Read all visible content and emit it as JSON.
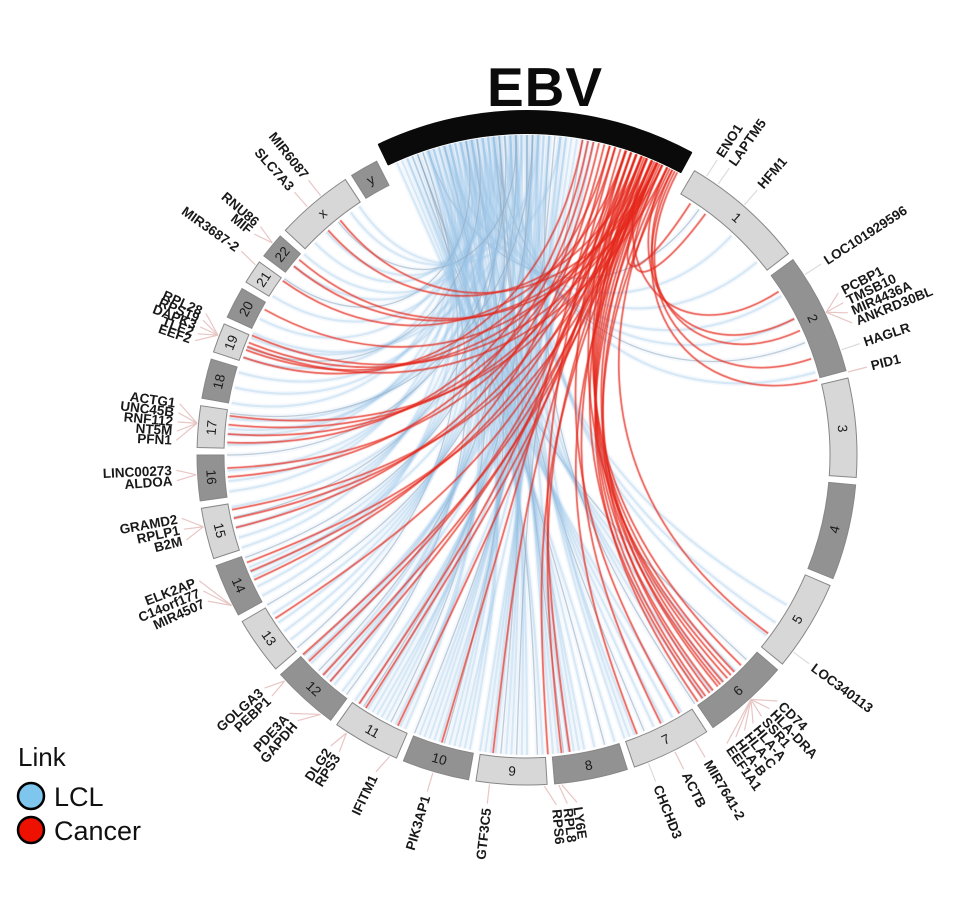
{
  "title": "EBV",
  "legend": {
    "title": "Link",
    "items": [
      {
        "label": "LCL",
        "color": "#7FC6EF"
      },
      {
        "label": "Cancer",
        "color": "#EE1100"
      }
    ]
  },
  "chart_data": {
    "type": "chord",
    "title": "EBV",
    "description": "Circos chord plot of EBV links to human chromosomes; blue chords = LCL links, red chords = Cancer links",
    "ebv_arc": {
      "label": "EBV",
      "start_deg": -25.5,
      "end_deg": 28.5,
      "color": "#0a0a0a"
    },
    "arc_colors": {
      "light": "#D7D7D7",
      "dark": "#929292",
      "border": "#878787"
    },
    "link_colors": {
      "LCL": "#9CC8E8",
      "Cancer": "#E5271C"
    },
    "tick_color_default": "#E8C6C4",
    "chromosomes": [
      {
        "name": "1",
        "start": 30.5,
        "end": 52.4,
        "shade": "light"
      },
      {
        "name": "2",
        "start": 53.7,
        "end": 75.2,
        "shade": "dark"
      },
      {
        "name": "3",
        "start": 76.5,
        "end": 93.9,
        "shade": "light"
      },
      {
        "name": "4",
        "start": 95.2,
        "end": 112.0,
        "shade": "dark"
      },
      {
        "name": "5",
        "start": 113.3,
        "end": 129.3,
        "shade": "light"
      },
      {
        "name": "6",
        "start": 130.6,
        "end": 145.7,
        "shade": "dark"
      },
      {
        "name": "7",
        "start": 147.0,
        "end": 161.0,
        "shade": "light"
      },
      {
        "name": "8",
        "start": 162.3,
        "end": 175.2,
        "shade": "dark"
      },
      {
        "name": "9",
        "start": 176.5,
        "end": 188.9,
        "shade": "light"
      },
      {
        "name": "10",
        "start": 190.2,
        "end": 202.0,
        "shade": "dark"
      },
      {
        "name": "11",
        "start": 203.3,
        "end": 215.2,
        "shade": "light"
      },
      {
        "name": "12",
        "start": 216.5,
        "end": 228.3,
        "shade": "dark"
      },
      {
        "name": "13",
        "start": 229.6,
        "end": 239.7,
        "shade": "light"
      },
      {
        "name": "14",
        "start": 241.0,
        "end": 250.4,
        "shade": "dark"
      },
      {
        "name": "15",
        "start": 251.7,
        "end": 260.7,
        "shade": "light"
      },
      {
        "name": "16",
        "start": 262.0,
        "end": 270.0,
        "shade": "dark"
      },
      {
        "name": "17",
        "start": 271.3,
        "end": 278.6,
        "shade": "light"
      },
      {
        "name": "18",
        "start": 279.9,
        "end": 286.9,
        "shade": "dark"
      },
      {
        "name": "19",
        "start": 288.2,
        "end": 293.4,
        "shade": "light"
      },
      {
        "name": "20",
        "start": 294.7,
        "end": 300.3,
        "shade": "dark"
      },
      {
        "name": "21",
        "start": 301.6,
        "end": 305.8,
        "shade": "light"
      },
      {
        "name": "22",
        "start": 307.1,
        "end": 311.6,
        "shade": "dark"
      },
      {
        "name": "x",
        "start": 312.9,
        "end": 326.6,
        "shade": "light"
      },
      {
        "name": "y",
        "start": 327.9,
        "end": 332.9,
        "shade": "dark"
      }
    ],
    "genes": [
      {
        "label": "ENO1",
        "chr": "1",
        "angle": 32.8,
        "anchor": 32.8,
        "tick": "#DCDCDC"
      },
      {
        "label": "LAPTM5",
        "chr": "1",
        "angle": 35.2,
        "anchor": 35.2,
        "tick": "#DCDCDC"
      },
      {
        "label": "HFM1",
        "chr": "1",
        "angle": 41.0,
        "anchor": 41.0,
        "tick": "#DCDCDC"
      },
      {
        "label": "LOC101929596",
        "chr": "2",
        "angle": 57.0,
        "anchor": 57.0,
        "tick": "#DCDCDC"
      },
      {
        "label": "PCBP1",
        "chr": "2",
        "angle": 62.5,
        "anchor": 64.5
      },
      {
        "label": "TMSB10",
        "chr": "2",
        "angle": 64.3,
        "anchor": 64.5
      },
      {
        "label": "MIR4436A",
        "chr": "2",
        "angle": 66.1,
        "anchor": 64.5
      },
      {
        "label": "ANKRD30BL",
        "chr": "2",
        "angle": 67.9,
        "anchor": 64.5
      },
      {
        "label": "HAGLR",
        "chr": "2",
        "angle": 71.5,
        "anchor": 71.5,
        "tick": "#DCDCDC"
      },
      {
        "label": "PID1",
        "chr": "2",
        "angle": 75.5,
        "anchor": 75.5
      },
      {
        "label": "LOC340113",
        "chr": "5",
        "angle": 126.5,
        "anchor": 126.5,
        "tick": "#DCDCDC"
      },
      {
        "label": "CD74",
        "chr": "6",
        "angle": 134.5,
        "anchor": 137.5
      },
      {
        "label": "HLA-DRA",
        "chr": "6",
        "angle": 136.3,
        "anchor": 137.5
      },
      {
        "label": "SSR1",
        "chr": "6",
        "angle": 138.1,
        "anchor": 137.5
      },
      {
        "label": "HLA-A",
        "chr": "6",
        "angle": 139.9,
        "anchor": 137.5
      },
      {
        "label": "HLA-C",
        "chr": "6",
        "angle": 141.7,
        "anchor": 137.5
      },
      {
        "label": "HLA-B",
        "chr": "6",
        "angle": 143.5,
        "anchor": 137.5
      },
      {
        "label": "EEF1A1",
        "chr": "6",
        "angle": 145.3,
        "anchor": 137.5
      },
      {
        "label": "MIR7641-2",
        "chr": "7",
        "angle": 149.5,
        "anchor": 149.5
      },
      {
        "label": "ACTB",
        "chr": "7",
        "angle": 153.5,
        "anchor": 153.5
      },
      {
        "label": "CHCHD3",
        "chr": "7",
        "angle": 158.5,
        "anchor": 158.5,
        "tick": "#DCDCDC"
      },
      {
        "label": "LY6E",
        "chr": "8",
        "angle": 171.8,
        "anchor": 174.0
      },
      {
        "label": "RPL8",
        "chr": "8",
        "angle": 173.4,
        "anchor": 174.5
      },
      {
        "label": "RPS6",
        "chr": "9",
        "angle": 175.2,
        "anchor": 177.0
      },
      {
        "label": "GTF3C5",
        "chr": "9",
        "angle": 186.5,
        "anchor": 186.5
      },
      {
        "label": "PIK3AP1",
        "chr": "10",
        "angle": 196.5,
        "anchor": 196.5
      },
      {
        "label": "IFITM1",
        "chr": "11",
        "angle": 205.5,
        "anchor": 204.5
      },
      {
        "label": "RPS3",
        "chr": "11",
        "angle": 212.3,
        "anchor": 213.0
      },
      {
        "label": "DLG2",
        "chr": "11",
        "angle": 214.0,
        "anchor": 213.0
      },
      {
        "label": "GAPDH",
        "chr": "12",
        "angle": 220.8,
        "anchor": 218.5
      },
      {
        "label": "PDE3A",
        "chr": "12",
        "angle": 222.6,
        "anchor": 218.5
      },
      {
        "label": "PEBP1",
        "chr": "12",
        "angle": 226.6,
        "anchor": 227.0
      },
      {
        "label": "GOLGA3",
        "chr": "12",
        "angle": 228.4,
        "anchor": 227.0
      },
      {
        "label": "MIR4507",
        "chr": "14",
        "angle": 245.4,
        "anchor": 243.0
      },
      {
        "label": "C14orf177",
        "chr": "14",
        "angle": 247.2,
        "anchor": 243.0
      },
      {
        "label": "ELK2AP",
        "chr": "14",
        "angle": 249.0,
        "anchor": 243.0
      },
      {
        "label": "B2M",
        "chr": "15",
        "angle": 256.0,
        "anchor": 257.5
      },
      {
        "label": "RPLP1",
        "chr": "15",
        "angle": 257.8,
        "anchor": 257.5
      },
      {
        "label": "GRAMD2",
        "chr": "15",
        "angle": 259.6,
        "anchor": 257.5
      },
      {
        "label": "ALDOA",
        "chr": "16",
        "angle": 265.8,
        "anchor": 266.6
      },
      {
        "label": "LINC00273",
        "chr": "16",
        "angle": 267.5,
        "anchor": 266.6
      },
      {
        "label": "PFN1",
        "chr": "17",
        "angle": 272.4,
        "anchor": 275.5
      },
      {
        "label": "NT5M",
        "chr": "17",
        "angle": 273.9,
        "anchor": 275.5
      },
      {
        "label": "RNF112",
        "chr": "17",
        "angle": 275.4,
        "anchor": 275.5
      },
      {
        "label": "UNC45B",
        "chr": "17",
        "angle": 276.9,
        "anchor": 275.5
      },
      {
        "label": "ACTG1",
        "chr": "17",
        "angle": 278.4,
        "anchor": 275.5
      },
      {
        "label": "EEF2",
        "chr": "19",
        "angle": 289.0,
        "anchor": 291.2
      },
      {
        "label": "TLE2",
        "chr": "19",
        "angle": 290.2,
        "anchor": 291.2
      },
      {
        "label": "DAPK3",
        "chr": "19",
        "angle": 291.4,
        "anchor": 291.2
      },
      {
        "label": "RPS19",
        "chr": "19",
        "angle": 292.6,
        "anchor": 291.2
      },
      {
        "label": "RPL28",
        "chr": "19",
        "angle": 293.8,
        "anchor": 291.2
      },
      {
        "label": "MIR3687-2",
        "chr": "21",
        "angle": 305.5,
        "anchor": 305.0
      },
      {
        "label": "MIF",
        "chr": "22",
        "angle": 309.0,
        "anchor": 309.8
      },
      {
        "label": "RNU86",
        "chr": "22",
        "angle": 310.6,
        "anchor": 309.8
      },
      {
        "label": "SLC7A3",
        "chr": "x",
        "angle": 318.5,
        "anchor": 318.5
      },
      {
        "label": "MIR6087",
        "chr": "x",
        "angle": 321.5,
        "anchor": 321.5
      }
    ],
    "links": {
      "Cancer": [
        [
          24,
          33
        ],
        [
          25,
          36.5
        ],
        [
          22,
          57
        ],
        [
          26,
          63
        ],
        [
          27,
          65.5
        ],
        [
          28,
          71.3
        ],
        [
          27.5,
          75.5
        ],
        [
          26.5,
          126.5
        ],
        [
          19,
          134.5
        ],
        [
          20,
          136.3
        ],
        [
          21,
          138.1
        ],
        [
          22,
          139.9
        ],
        [
          23,
          141.7
        ],
        [
          24,
          143.5
        ],
        [
          25,
          145.3
        ],
        [
          26,
          140.5
        ],
        [
          27,
          142.5
        ],
        [
          18,
          137.2
        ],
        [
          21.5,
          144.2
        ],
        [
          24.5,
          139.2
        ],
        [
          17,
          149.5
        ],
        [
          23,
          153.5
        ],
        [
          24,
          158.5
        ],
        [
          16,
          171.8
        ],
        [
          22,
          173.4
        ],
        [
          23.5,
          176
        ],
        [
          20,
          186.5
        ],
        [
          15,
          196.5
        ],
        [
          21,
          205.5
        ],
        [
          23,
          212.5
        ],
        [
          18,
          214
        ],
        [
          22,
          221
        ],
        [
          24,
          222.8
        ],
        [
          19,
          226.6
        ],
        [
          23,
          228.3
        ],
        [
          21,
          237
        ],
        [
          14,
          245.4
        ],
        [
          20,
          247.2
        ],
        [
          24,
          249
        ],
        [
          13,
          256
        ],
        [
          19,
          257.8
        ],
        [
          23,
          259.5
        ],
        [
          12,
          265.8
        ],
        [
          18,
          267.5
        ],
        [
          11,
          272.4
        ],
        [
          16,
          274
        ],
        [
          21,
          275.8
        ],
        [
          24,
          277.5
        ],
        [
          10,
          289
        ],
        [
          15,
          290.5
        ],
        [
          20,
          292
        ],
        [
          24,
          293.5
        ],
        [
          26,
          291.2
        ],
        [
          22,
          299
        ],
        [
          18,
          305.5
        ],
        [
          23,
          309
        ],
        [
          25,
          310.6
        ],
        [
          21,
          318.5
        ],
        [
          24,
          321.5
        ]
      ],
      "LCL": [
        [
          -18,
          35
        ],
        [
          -15,
          43
        ],
        [
          -12,
          50
        ],
        [
          -10,
          58
        ],
        [
          -8,
          63
        ],
        [
          -6,
          68
        ],
        [
          -4,
          74
        ],
        [
          -2,
          120
        ],
        [
          0,
          124
        ],
        [
          2,
          127
        ],
        [
          -20,
          133
        ],
        [
          -16,
          136
        ],
        [
          -10,
          139
        ],
        [
          -5,
          142
        ],
        [
          0,
          144
        ],
        [
          4,
          146
        ],
        [
          -22,
          149
        ],
        [
          -18,
          151
        ],
        [
          -14,
          153
        ],
        [
          -10,
          155
        ],
        [
          -6,
          157
        ],
        [
          -2,
          159
        ],
        [
          2,
          161
        ],
        [
          6,
          160
        ],
        [
          -24,
          163
        ],
        [
          -21,
          165
        ],
        [
          -18,
          167
        ],
        [
          -15,
          169
        ],
        [
          -12,
          171
        ],
        [
          -9,
          172
        ],
        [
          -6,
          173
        ],
        [
          -3,
          174
        ],
        [
          0,
          175
        ],
        [
          3,
          170
        ],
        [
          -23,
          177
        ],
        [
          -20,
          178
        ],
        [
          -17,
          180
        ],
        [
          -14,
          181
        ],
        [
          -11,
          183
        ],
        [
          -8,
          184
        ],
        [
          -5,
          185
        ],
        [
          -2,
          186
        ],
        [
          1,
          187
        ],
        [
          4,
          188
        ],
        [
          7,
          189
        ],
        [
          10,
          182
        ],
        [
          -22,
          191
        ],
        [
          -19,
          192
        ],
        [
          -16,
          194
        ],
        [
          -13,
          195
        ],
        [
          -10,
          196
        ],
        [
          -7,
          197
        ],
        [
          -4,
          199
        ],
        [
          -1,
          200
        ],
        [
          2,
          201
        ],
        [
          5,
          202
        ],
        [
          8,
          198
        ],
        [
          11,
          193
        ],
        [
          -21,
          204
        ],
        [
          -18,
          205
        ],
        [
          -15,
          207
        ],
        [
          -12,
          208
        ],
        [
          -9,
          209
        ],
        [
          -6,
          211
        ],
        [
          -3,
          212
        ],
        [
          0,
          213
        ],
        [
          3,
          214
        ],
        [
          6,
          215
        ],
        [
          9,
          210
        ],
        [
          12,
          206
        ],
        [
          -20,
          217
        ],
        [
          -17,
          218
        ],
        [
          -14,
          220
        ],
        [
          -11,
          221
        ],
        [
          -8,
          223
        ],
        [
          -5,
          224
        ],
        [
          -2,
          226
        ],
        [
          1,
          227
        ],
        [
          4,
          228
        ],
        [
          7,
          222
        ],
        [
          -19,
          230
        ],
        [
          -15,
          232
        ],
        [
          -11,
          234
        ],
        [
          -7,
          236
        ],
        [
          -3,
          238
        ],
        [
          1,
          240
        ],
        [
          -18,
          242
        ],
        [
          -14,
          244
        ],
        [
          -10,
          246
        ],
        [
          -6,
          248
        ],
        [
          -2,
          250
        ],
        [
          2,
          247
        ],
        [
          -17,
          252
        ],
        [
          -13,
          254
        ],
        [
          -9,
          256
        ],
        [
          -5,
          258
        ],
        [
          -1,
          260
        ],
        [
          -16,
          263
        ],
        [
          -12,
          265
        ],
        [
          -8,
          267
        ],
        [
          -4,
          270
        ],
        [
          -15,
          272
        ],
        [
          -11,
          274
        ],
        [
          -7,
          275
        ],
        [
          -3,
          277
        ],
        [
          1,
          278
        ],
        [
          -14,
          280
        ],
        [
          -10,
          283
        ],
        [
          -6,
          286
        ],
        [
          -13,
          289
        ],
        [
          -9,
          291
        ],
        [
          -5,
          293
        ],
        [
          -1,
          294
        ],
        [
          -12,
          297
        ],
        [
          -8,
          302
        ],
        [
          -11,
          306
        ],
        [
          -7,
          309
        ],
        [
          -3,
          312
        ],
        [
          -10,
          315
        ],
        [
          -6,
          318
        ],
        [
          -2,
          321
        ],
        [
          2,
          324
        ],
        [
          6,
          326
        ]
      ]
    }
  }
}
